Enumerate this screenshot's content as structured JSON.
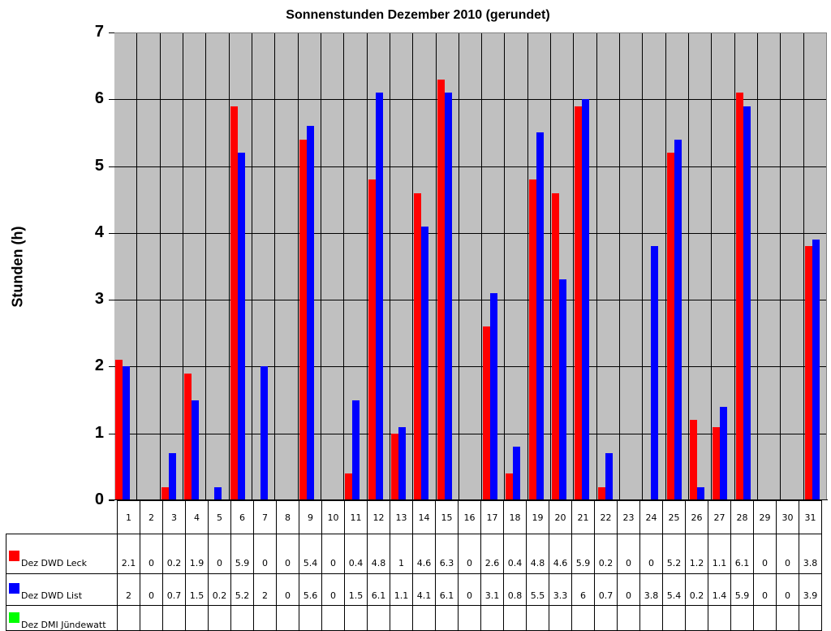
{
  "chart_data": {
    "type": "bar",
    "title": "Sonnenstunden Dezember 2010 (gerundet)",
    "xlabel": "",
    "ylabel": "Stunden (h)",
    "ylim": [
      0,
      7
    ],
    "yticks": [
      "0",
      "1",
      "2",
      "3",
      "4",
      "5",
      "6",
      "7"
    ],
    "grid": true,
    "legend_position": "data-table-left",
    "categories": [
      "1",
      "2",
      "3",
      "4",
      "5",
      "6",
      "7",
      "8",
      "9",
      "10",
      "11",
      "12",
      "13",
      "14",
      "15",
      "16",
      "17",
      "18",
      "19",
      "20",
      "21",
      "22",
      "23",
      "24",
      "25",
      "26",
      "27",
      "28",
      "29",
      "30",
      "31"
    ],
    "series": [
      {
        "name": "Dez DWD Leck",
        "color": "#ff0000",
        "values": [
          2.1,
          0,
          0.2,
          1.9,
          0,
          5.9,
          0,
          0,
          5.4,
          0,
          0.4,
          4.8,
          1,
          4.6,
          6.3,
          0,
          2.6,
          0.4,
          4.8,
          4.6,
          5.9,
          0.2,
          0,
          0,
          5.2,
          1.2,
          1.1,
          6.1,
          0,
          0,
          3.8
        ]
      },
      {
        "name": "Dez DWD List",
        "color": "#0000ff",
        "values": [
          2,
          0,
          0.7,
          1.5,
          0.2,
          5.2,
          2,
          0,
          5.6,
          0,
          1.5,
          6.1,
          1.1,
          4.1,
          6.1,
          0,
          3.1,
          0.8,
          5.5,
          3.3,
          6,
          0.7,
          0,
          3.8,
          5.4,
          0.2,
          1.4,
          5.9,
          0,
          0,
          3.9
        ]
      },
      {
        "name": "Dez DMI Jündewatt",
        "color": "#00ff00",
        "values": []
      }
    ],
    "table_display": {
      "Dez DWD Leck": [
        "2.1",
        "0",
        "0.2",
        "1.9",
        "0",
        "5.9",
        "0",
        "0",
        "5.4",
        "0",
        "0.4",
        "4.8",
        "1",
        "4.6",
        "6.3",
        "0",
        "2.6",
        "0.4",
        "4.8",
        "4.6",
        "5.9",
        "0.2",
        "0",
        "0",
        "5.2",
        "1.2",
        "1.1",
        "6.1",
        "0",
        "0",
        "3.8"
      ],
      "Dez DWD List": [
        "2",
        "0",
        "0.7",
        "1.5",
        "0.2",
        "5.2",
        "2",
        "0",
        "5.6",
        "0",
        "1.5",
        "6.1",
        "1.1",
        "4.1",
        "6.1",
        "0",
        "3.1",
        "0.8",
        "5.5",
        "3.3",
        "6",
        "0.7",
        "0",
        "3.8",
        "5.4",
        "0.2",
        "1.4",
        "5.9",
        "0",
        "0",
        "3.9"
      ],
      "Dez DMI Jündewatt": [
        "",
        "",
        "",
        "",
        "",
        "",
        "",
        "",
        "",
        "",
        "",
        "",
        "",
        "",
        "",
        "",
        "",
        "",
        "",
        "",
        "",
        "",
        "",
        "",
        "",
        "",
        "",
        "",
        "",
        "",
        ""
      ]
    }
  },
  "colors": {
    "plot_background": "#c0c0c0"
  }
}
